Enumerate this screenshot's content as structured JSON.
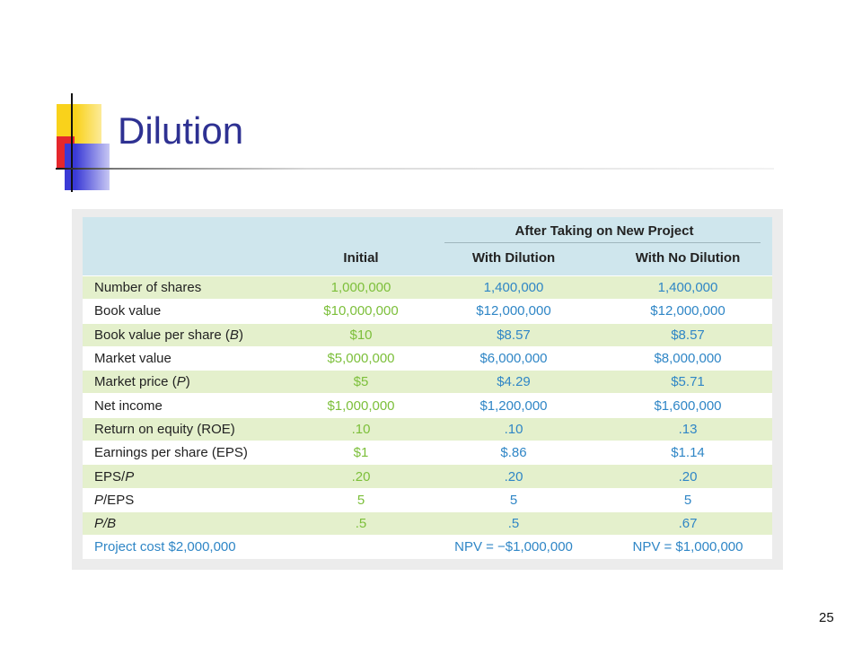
{
  "slide": {
    "title": "Dilution",
    "page_number": "25"
  },
  "table": {
    "group_header": "After Taking on New Project",
    "columns": [
      "",
      "Initial",
      "With Dilution",
      "With No Dilution"
    ],
    "rows": [
      {
        "label": "Number of shares",
        "initial": "1,000,000",
        "with_dilution": "1,400,000",
        "no_dilution": "1,400,000"
      },
      {
        "label": "Book value",
        "initial": "$10,000,000",
        "with_dilution": "$12,000,000",
        "no_dilution": "$12,000,000"
      },
      {
        "label_pre": "Book value per share (",
        "label_var": "B",
        "label_post": ")",
        "initial": "$10",
        "with_dilution": "$8.57",
        "no_dilution": "$8.57"
      },
      {
        "label": "Market value",
        "initial": "$5,000,000",
        "with_dilution": "$6,000,000",
        "no_dilution": "$8,000,000"
      },
      {
        "label_pre": "Market price (",
        "label_var": "P",
        "label_post": ")",
        "initial": "$5",
        "with_dilution": "$4.29",
        "no_dilution": "$5.71"
      },
      {
        "label": "Net income",
        "initial": "$1,000,000",
        "with_dilution": "$1,200,000",
        "no_dilution": "$1,600,000"
      },
      {
        "label": "Return on equity (ROE)",
        "initial": ".10",
        "with_dilution": ".10",
        "no_dilution": ".13"
      },
      {
        "label": "Earnings per share (EPS)",
        "initial": "$1",
        "with_dilution": "$.86",
        "no_dilution": "$1.14"
      },
      {
        "label_pre": "EPS/",
        "label_var": "P",
        "label_post": "",
        "initial": ".20",
        "with_dilution": ".20",
        "no_dilution": ".20"
      },
      {
        "label_pre": "",
        "label_var": "P",
        "label_post": "/EPS",
        "initial": "5",
        "with_dilution": "5",
        "no_dilution": "5"
      },
      {
        "label_pre": "",
        "label_var": "P/B",
        "label_post": "",
        "initial": ".5",
        "with_dilution": ".5",
        "no_dilution": ".67"
      }
    ],
    "footer": {
      "label": "Project cost $2,000,000",
      "with_dilution": "NPV = −$1,000,000",
      "no_dilution": "NPV = $1,000,000"
    }
  },
  "colors": {
    "title": "#2e3192",
    "header_bg": "#cfe6ed",
    "row_shade": "#e4f0cc",
    "initial_text": "#7cbf3a",
    "project_text": "#2f86c6"
  }
}
